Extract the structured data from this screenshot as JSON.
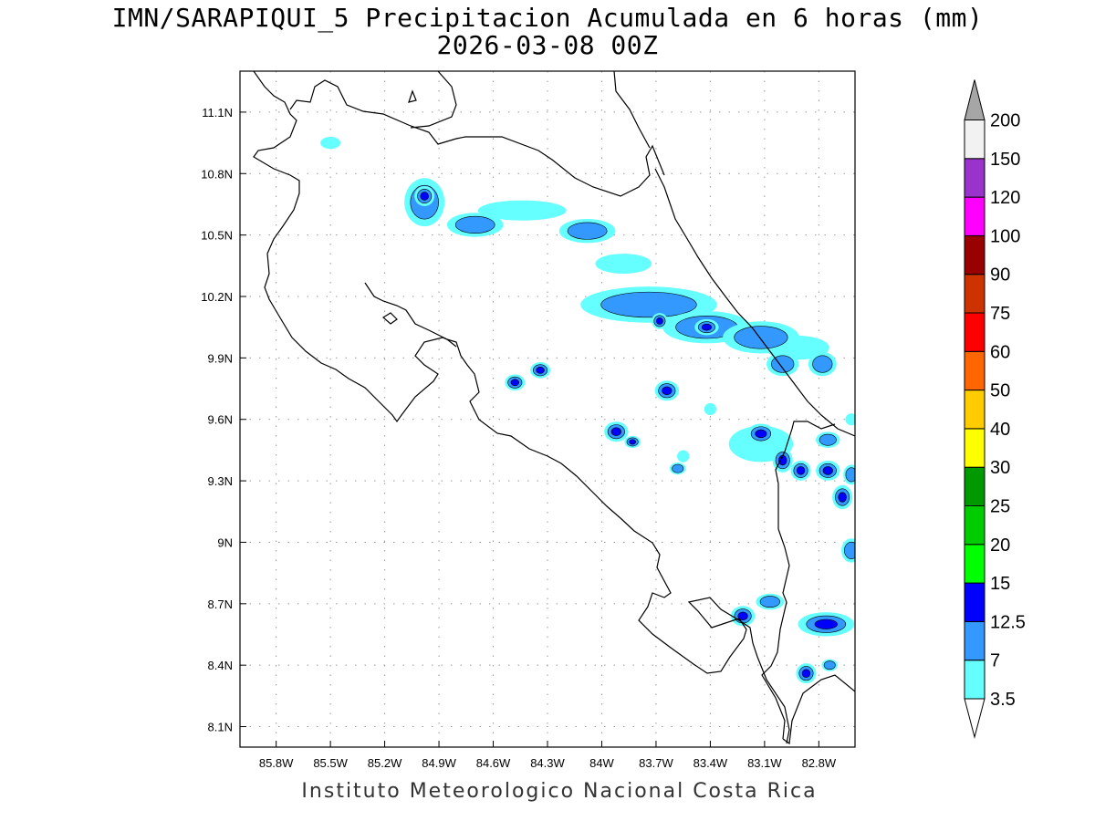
{
  "title": {
    "line1": "IMN/SARAPIQUI_5 Precipitacion Acumulada en 6 horas (mm)",
    "line2": "2026-03-08 00Z"
  },
  "footer": "Instituto Meteorologico Nacional Costa Rica",
  "map": {
    "lon_range": [
      -86.0,
      -82.6
    ],
    "lat_range": [
      8.0,
      11.3
    ],
    "x_ticks": [
      {
        "value": -85.8,
        "label": "85.8W"
      },
      {
        "value": -85.5,
        "label": "85.5W"
      },
      {
        "value": -85.2,
        "label": "85.2W"
      },
      {
        "value": -84.9,
        "label": "84.9W"
      },
      {
        "value": -84.6,
        "label": "84.6W"
      },
      {
        "value": -84.3,
        "label": "84.3W"
      },
      {
        "value": -84.0,
        "label": "84W"
      },
      {
        "value": -83.7,
        "label": "83.7W"
      },
      {
        "value": -83.4,
        "label": "83.4W"
      },
      {
        "value": -83.1,
        "label": "83.1W"
      },
      {
        "value": -82.8,
        "label": "82.8W"
      }
    ],
    "y_ticks": [
      {
        "value": 8.1,
        "label": "8.1N"
      },
      {
        "value": 8.4,
        "label": "8.4N"
      },
      {
        "value": 8.7,
        "label": "8.7N"
      },
      {
        "value": 9.0,
        "label": "9N"
      },
      {
        "value": 9.3,
        "label": "9.3N"
      },
      {
        "value": 9.6,
        "label": "9.6N"
      },
      {
        "value": 9.9,
        "label": "9.9N"
      },
      {
        "value": 10.2,
        "label": "10.2N"
      },
      {
        "value": 10.5,
        "label": "10.5N"
      },
      {
        "value": 10.8,
        "label": "10.8N"
      },
      {
        "value": 11.1,
        "label": "11.1N"
      }
    ],
    "grid": true,
    "coast_colors": {
      "line": "#000000"
    }
  },
  "colorbar": {
    "labels": [
      "3.5",
      "7",
      "12.5",
      "15",
      "20",
      "25",
      "30",
      "40",
      "50",
      "60",
      "75",
      "90",
      "100",
      "120",
      "150",
      "200"
    ],
    "colors": [
      "#66ffff",
      "#3399ff",
      "#0000ff",
      "#00ff00",
      "#00cc00",
      "#009900",
      "#ffff00",
      "#ffcc00",
      "#ff6600",
      "#ff0000",
      "#cc3300",
      "#990000",
      "#ff00ff",
      "#9933cc",
      "#f2f2f2"
    ],
    "over_color": "#a6a6a6",
    "under_color": "#ffffff"
  },
  "precip_cells": [
    {
      "lon": -84.98,
      "lat": 10.66,
      "level": 1,
      "rx": 1.0,
      "ry": 1.2
    },
    {
      "lon": -84.98,
      "lat": 10.69,
      "level": 2,
      "rx": 0.5,
      "ry": 0.5
    },
    {
      "lon": -84.7,
      "lat": 10.55,
      "level": 1,
      "rx": 1.4,
      "ry": 0.6
    },
    {
      "lon": -84.44,
      "lat": 10.62,
      "level": 0,
      "rx": 2.2,
      "ry": 0.5
    },
    {
      "lon": -84.08,
      "lat": 10.52,
      "level": 1,
      "rx": 1.4,
      "ry": 0.6
    },
    {
      "lon": -83.88,
      "lat": 10.36,
      "level": 0,
      "rx": 1.4,
      "ry": 0.5
    },
    {
      "lon": -83.74,
      "lat": 10.16,
      "level": 1,
      "rx": 3.4,
      "ry": 0.9
    },
    {
      "lon": -83.68,
      "lat": 10.08,
      "level": 3,
      "rx": 0.4,
      "ry": 0.4
    },
    {
      "lon": -83.42,
      "lat": 10.05,
      "level": 1,
      "rx": 2.2,
      "ry": 0.8
    },
    {
      "lon": -83.42,
      "lat": 10.05,
      "level": 3,
      "rx": 0.6,
      "ry": 0.4
    },
    {
      "lon": -83.12,
      "lat": 10.0,
      "level": 1,
      "rx": 1.9,
      "ry": 0.8
    },
    {
      "lon": -82.92,
      "lat": 9.95,
      "level": 0,
      "rx": 1.6,
      "ry": 0.6
    },
    {
      "lon": -83.0,
      "lat": 9.87,
      "level": 1,
      "rx": 0.8,
      "ry": 0.6
    },
    {
      "lon": -82.78,
      "lat": 9.87,
      "level": 1,
      "rx": 0.7,
      "ry": 0.6
    },
    {
      "lon": -84.48,
      "lat": 9.78,
      "level": 3,
      "rx": 0.5,
      "ry": 0.4
    },
    {
      "lon": -84.34,
      "lat": 9.84,
      "level": 2,
      "rx": 0.5,
      "ry": 0.4
    },
    {
      "lon": -83.64,
      "lat": 9.74,
      "level": 3,
      "rx": 0.6,
      "ry": 0.5
    },
    {
      "lon": -83.92,
      "lat": 9.54,
      "level": 3,
      "rx": 0.6,
      "ry": 0.5
    },
    {
      "lon": -83.83,
      "lat": 9.49,
      "level": 2,
      "rx": 0.4,
      "ry": 0.3
    },
    {
      "lon": -83.12,
      "lat": 9.53,
      "level": 2,
      "rx": 0.7,
      "ry": 0.5
    },
    {
      "lon": -83.12,
      "lat": 9.48,
      "level": 0,
      "rx": 1.6,
      "ry": 0.9
    },
    {
      "lon": -83.0,
      "lat": 9.4,
      "level": 3,
      "rx": 0.5,
      "ry": 0.6
    },
    {
      "lon": -82.9,
      "lat": 9.35,
      "level": 3,
      "rx": 0.5,
      "ry": 0.5
    },
    {
      "lon": -82.75,
      "lat": 9.35,
      "level": 2,
      "rx": 0.6,
      "ry": 0.5
    },
    {
      "lon": -82.67,
      "lat": 9.22,
      "level": 3,
      "rx": 0.5,
      "ry": 0.6
    },
    {
      "lon": -82.75,
      "lat": 9.5,
      "level": 1,
      "rx": 0.6,
      "ry": 0.4
    },
    {
      "lon": -82.62,
      "lat": 8.96,
      "level": 1,
      "rx": 0.5,
      "ry": 0.6
    },
    {
      "lon": -83.22,
      "lat": 8.64,
      "level": 3,
      "rx": 0.6,
      "ry": 0.5
    },
    {
      "lon": -83.07,
      "lat": 8.71,
      "level": 1,
      "rx": 0.7,
      "ry": 0.4
    },
    {
      "lon": -82.76,
      "lat": 8.6,
      "level": 3,
      "rx": 1.4,
      "ry": 0.6
    },
    {
      "lon": -82.87,
      "lat": 8.36,
      "level": 2,
      "rx": 0.5,
      "ry": 0.5
    },
    {
      "lon": -82.74,
      "lat": 8.4,
      "level": 1,
      "rx": 0.4,
      "ry": 0.3
    },
    {
      "lon": -85.5,
      "lat": 10.95,
      "level": 0,
      "rx": 0.5,
      "ry": 0.3
    },
    {
      "lon": -83.55,
      "lat": 9.42,
      "level": 0,
      "rx": 0.3,
      "ry": 0.3
    },
    {
      "lon": -83.58,
      "lat": 9.36,
      "level": 1,
      "rx": 0.4,
      "ry": 0.3
    },
    {
      "lon": -83.4,
      "lat": 9.65,
      "level": 0,
      "rx": 0.3,
      "ry": 0.3
    },
    {
      "lon": -82.62,
      "lat": 9.33,
      "level": 1,
      "rx": 0.4,
      "ry": 0.5
    },
    {
      "lon": -82.62,
      "lat": 9.6,
      "level": 0,
      "rx": 0.3,
      "ry": 0.3
    }
  ]
}
